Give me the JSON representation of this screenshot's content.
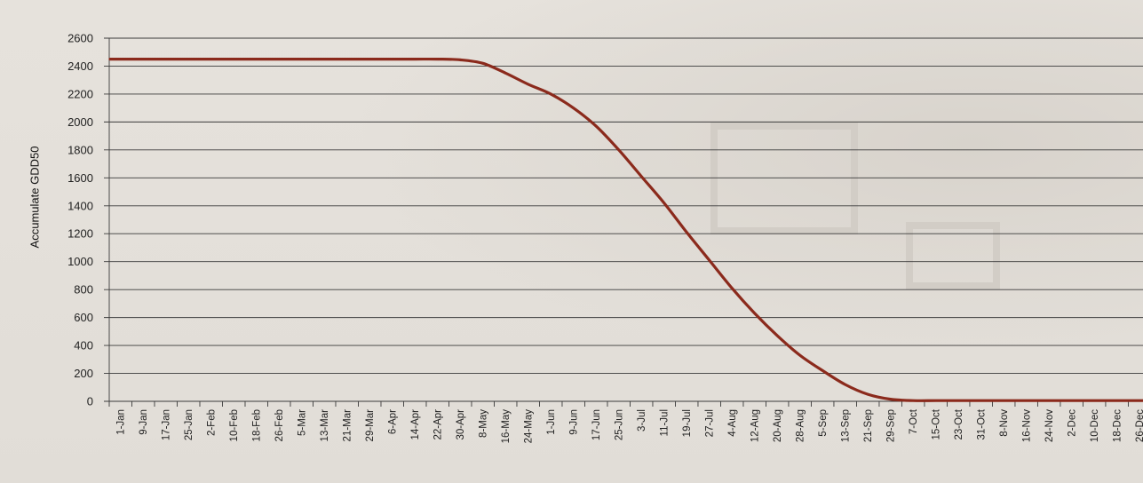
{
  "chart_data": {
    "type": "line",
    "title": "",
    "xlabel": "",
    "ylabel": "Accumulate GDD50",
    "ylim": [
      0,
      2600
    ],
    "yticks": [
      0,
      200,
      400,
      600,
      800,
      1000,
      1200,
      1400,
      1600,
      1800,
      2000,
      2200,
      2400,
      2600
    ],
    "grid": "horizontal",
    "x": [
      "1-Jan",
      "9-Jan",
      "17-Jan",
      "25-Jan",
      "2-Feb",
      "10-Feb",
      "18-Feb",
      "26-Feb",
      "5-Mar",
      "13-Mar",
      "21-Mar",
      "29-Mar",
      "6-Apr",
      "14-Apr",
      "22-Apr",
      "30-Apr",
      "8-May",
      "16-May",
      "24-May",
      "1-Jun",
      "9-Jun",
      "17-Jun",
      "25-Jun",
      "3-Jul",
      "11-Jul",
      "19-Jul",
      "27-Jul",
      "4-Aug",
      "12-Aug",
      "20-Aug",
      "28-Aug",
      "5-Sep",
      "13-Sep",
      "21-Sep",
      "29-Sep",
      "7-Oct",
      "15-Oct",
      "23-Oct",
      "31-Oct",
      "8-Nov",
      "16-Nov",
      "24-Nov",
      "2-Dec",
      "10-Dec",
      "18-Dec",
      "26-Dec"
    ],
    "series": [
      {
        "color": "#8b2a1c",
        "values": [
          2450,
          2450,
          2450,
          2450,
          2450,
          2450,
          2450,
          2450,
          2450,
          2450,
          2450,
          2450,
          2450,
          2450,
          2450,
          2445,
          2420,
          2350,
          2270,
          2200,
          2100,
          1970,
          1800,
          1610,
          1420,
          1210,
          1010,
          810,
          630,
          470,
          330,
          220,
          120,
          50,
          15,
          5,
          5,
          5,
          5,
          5,
          5,
          5,
          5,
          5,
          5,
          5
        ]
      }
    ]
  }
}
